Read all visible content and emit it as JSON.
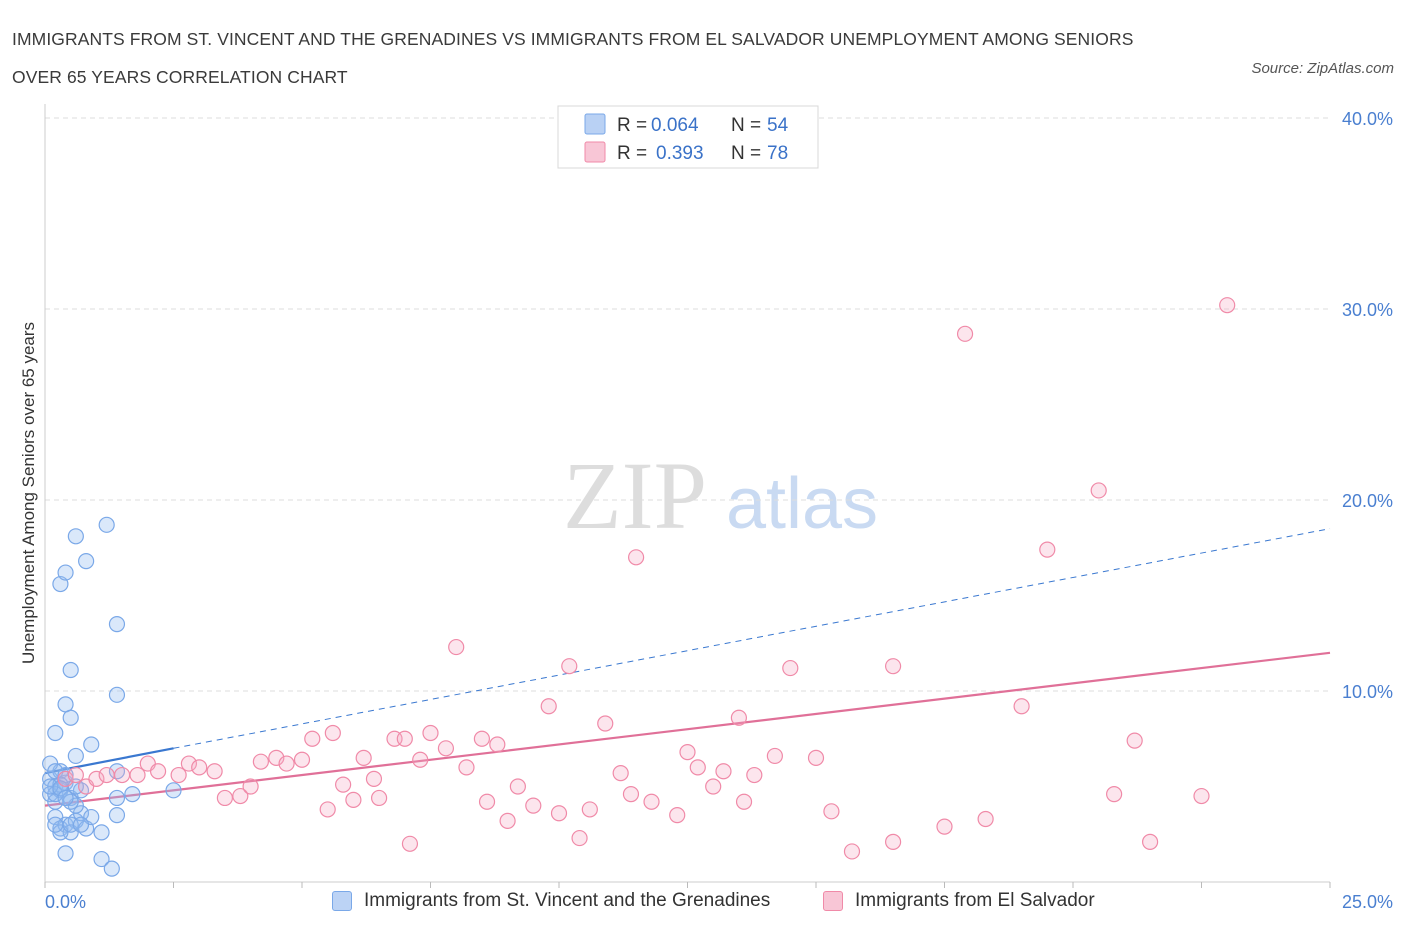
{
  "title_line1": "IMMIGRANTS FROM ST. VINCENT AND THE GRENADINES VS IMMIGRANTS FROM EL SALVADOR UNEMPLOYMENT AMONG SENIORS",
  "title_line2": "OVER 65 YEARS CORRELATION CHART",
  "source": "Source: ZipAtlas.com",
  "watermark_zip": "ZIP",
  "watermark_atlas": "atlas",
  "colors": {
    "blue": "#7aa8e8",
    "blue_fill": "rgba(150,190,240,0.35)",
    "blue_line": "#3a78d0",
    "pink": "#f08aa8",
    "pink_fill": "rgba(245,170,195,0.30)",
    "pink_line": "#e07098",
    "axis_text": "#4a7fd0",
    "grid": "#dddddd"
  },
  "legend": {
    "r_label": "R =",
    "n_label": "N =",
    "blue": {
      "r": "0.064",
      "n": "54"
    },
    "pink": {
      "r": "0.393",
      "n": "78"
    }
  },
  "chart_data": {
    "type": "scatter",
    "xlabel": "",
    "ylabel": "Unemployment Among Seniors over 65 years",
    "xlim": [
      0,
      25
    ],
    "ylim": [
      0,
      40
    ],
    "x_tick_labels": [
      "0.0%",
      "25.0%"
    ],
    "y_ticks": [
      10,
      20,
      30,
      40
    ],
    "y_tick_labels": [
      "10.0%",
      "20.0%",
      "30.0%",
      "40.0%"
    ],
    "grid": true,
    "series": [
      {
        "name": "Immigrants from St. Vincent and the Grenadines",
        "color": "blue",
        "trend_solid": {
          "x": [
            0,
            2.5
          ],
          "y": [
            5.7,
            7.0
          ]
        },
        "trend_dashed": {
          "x": [
            2.5,
            25
          ],
          "y": [
            7.0,
            18.5
          ]
        },
        "points": [
          [
            0.1,
            5.4
          ],
          [
            0.2,
            5.0
          ],
          [
            0.1,
            4.6
          ],
          [
            0.3,
            5.8
          ],
          [
            0.2,
            4.2
          ],
          [
            0.4,
            5.2
          ],
          [
            0.1,
            6.2
          ],
          [
            0.3,
            4.8
          ],
          [
            0.5,
            4.4
          ],
          [
            0.2,
            3.4
          ],
          [
            0.3,
            2.8
          ],
          [
            0.4,
            3.0
          ],
          [
            0.6,
            3.2
          ],
          [
            0.5,
            2.6
          ],
          [
            0.3,
            2.6
          ],
          [
            0.7,
            3.6
          ],
          [
            0.8,
            2.8
          ],
          [
            0.9,
            3.4
          ],
          [
            0.6,
            4.0
          ],
          [
            0.4,
            1.5
          ],
          [
            0.2,
            7.8
          ],
          [
            0.6,
            6.6
          ],
          [
            0.9,
            7.2
          ],
          [
            0.4,
            9.3
          ],
          [
            0.5,
            8.6
          ],
          [
            0.5,
            11.1
          ],
          [
            0.3,
            15.6
          ],
          [
            0.4,
            16.2
          ],
          [
            0.6,
            18.1
          ],
          [
            0.8,
            16.8
          ],
          [
            1.2,
            18.7
          ],
          [
            1.4,
            13.5
          ],
          [
            1.4,
            9.8
          ],
          [
            1.4,
            4.4
          ],
          [
            1.4,
            3.5
          ],
          [
            1.7,
            4.6
          ],
          [
            1.1,
            1.2
          ],
          [
            1.3,
            0.7
          ],
          [
            1.1,
            2.6
          ],
          [
            0.2,
            5.8
          ],
          [
            0.4,
            5.6
          ],
          [
            0.7,
            4.8
          ],
          [
            0.3,
            5.1
          ],
          [
            0.6,
            5.0
          ],
          [
            0.2,
            4.6
          ],
          [
            0.5,
            4.2
          ],
          [
            1.4,
            5.8
          ],
          [
            2.5,
            4.8
          ],
          [
            0.1,
            5.0
          ],
          [
            0.3,
            4.9
          ],
          [
            0.5,
            3.0
          ],
          [
            0.7,
            3.0
          ],
          [
            0.2,
            3.0
          ],
          [
            0.4,
            4.4
          ]
        ]
      },
      {
        "name": "Immigrants from El Salvador",
        "color": "pink",
        "trend_solid": {
          "x": [
            0,
            25
          ],
          "y": [
            4.0,
            12.0
          ]
        },
        "points": [
          [
            0.4,
            5.4
          ],
          [
            0.6,
            5.6
          ],
          [
            0.8,
            5.0
          ],
          [
            1.0,
            5.4
          ],
          [
            1.2,
            5.6
          ],
          [
            1.5,
            5.6
          ],
          [
            1.8,
            5.6
          ],
          [
            2.0,
            6.2
          ],
          [
            2.2,
            5.8
          ],
          [
            2.6,
            5.6
          ],
          [
            2.8,
            6.2
          ],
          [
            3.0,
            6.0
          ],
          [
            3.3,
            5.8
          ],
          [
            3.5,
            4.4
          ],
          [
            3.8,
            4.5
          ],
          [
            4.0,
            5.0
          ],
          [
            4.2,
            6.3
          ],
          [
            4.5,
            6.5
          ],
          [
            4.7,
            6.2
          ],
          [
            5.0,
            6.4
          ],
          [
            5.2,
            7.5
          ],
          [
            5.5,
            3.8
          ],
          [
            5.6,
            7.8
          ],
          [
            5.8,
            5.1
          ],
          [
            6.0,
            4.3
          ],
          [
            6.2,
            6.5
          ],
          [
            6.4,
            5.4
          ],
          [
            6.5,
            4.4
          ],
          [
            6.8,
            7.5
          ],
          [
            7.0,
            7.5
          ],
          [
            7.1,
            2.0
          ],
          [
            7.3,
            6.4
          ],
          [
            7.5,
            7.8
          ],
          [
            7.8,
            7.0
          ],
          [
            8.0,
            12.3
          ],
          [
            8.2,
            6.0
          ],
          [
            8.5,
            7.5
          ],
          [
            8.6,
            4.2
          ],
          [
            8.8,
            7.2
          ],
          [
            9.0,
            3.2
          ],
          [
            9.2,
            5.0
          ],
          [
            9.5,
            4.0
          ],
          [
            9.8,
            9.2
          ],
          [
            10.0,
            3.6
          ],
          [
            10.2,
            11.3
          ],
          [
            10.4,
            2.3
          ],
          [
            10.6,
            3.8
          ],
          [
            10.9,
            8.3
          ],
          [
            11.2,
            5.7
          ],
          [
            11.4,
            4.6
          ],
          [
            11.5,
            17.0
          ],
          [
            11.8,
            4.2
          ],
          [
            12.3,
            3.5
          ],
          [
            12.5,
            6.8
          ],
          [
            12.7,
            6.0
          ],
          [
            13.0,
            5.0
          ],
          [
            13.2,
            5.8
          ],
          [
            13.5,
            8.6
          ],
          [
            13.6,
            4.2
          ],
          [
            13.8,
            5.6
          ],
          [
            14.2,
            6.6
          ],
          [
            14.5,
            11.2
          ],
          [
            15.0,
            6.5
          ],
          [
            15.3,
            3.7
          ],
          [
            15.7,
            1.6
          ],
          [
            16.5,
            11.3
          ],
          [
            16.5,
            2.1
          ],
          [
            17.5,
            2.9
          ],
          [
            18.3,
            3.3
          ],
          [
            19.0,
            9.2
          ],
          [
            19.5,
            17.4
          ],
          [
            20.5,
            20.5
          ],
          [
            20.8,
            4.6
          ],
          [
            21.2,
            7.4
          ],
          [
            21.5,
            2.1
          ],
          [
            22.5,
            4.5
          ],
          [
            23.0,
            30.2
          ],
          [
            17.9,
            28.7
          ]
        ]
      }
    ]
  }
}
